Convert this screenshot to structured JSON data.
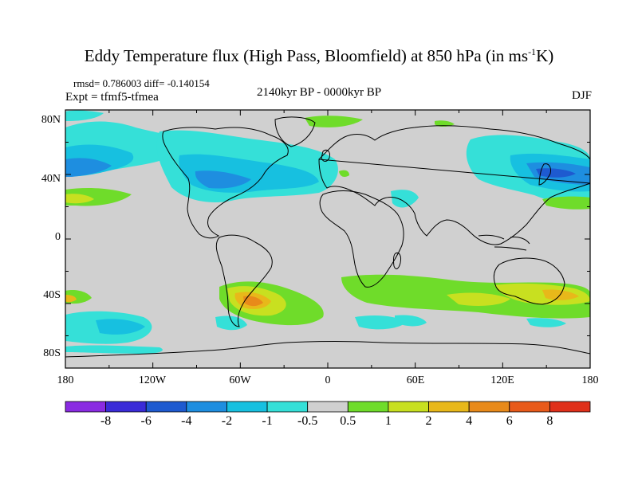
{
  "title_main": "Eddy Temperature flux (High Pass, Bloomfield) at 850 hPa (in ms",
  "title_sup": "-1",
  "title_tail": "K)",
  "stats": "rmsd= 0.786003 diff= -0.140154",
  "expt": "Expt = tfmf5-tfmea",
  "period": "2140kyr BP - 0000kyr BP",
  "season": "DJF",
  "lat_labels": [
    "80N",
    "40N",
    "0",
    "40S",
    "80S"
  ],
  "lon_labels": [
    "180",
    "120W",
    "60W",
    "0",
    "60E",
    "120E",
    "180"
  ],
  "colorbar": {
    "labels": [
      "-8",
      "-6",
      "-4",
      "-2",
      "-1",
      "-0.5",
      "0.5",
      "1",
      "2",
      "4",
      "6",
      "8"
    ],
    "colors": [
      "#8a2be2",
      "#3a2bd8",
      "#1e5ad0",
      "#1e8ee0",
      "#17c0e0",
      "#35e0d8",
      "#d0d0d0",
      "#6fdc2a",
      "#c8e020",
      "#e8b81a",
      "#e88a1a",
      "#e85a1a",
      "#e0301a"
    ]
  },
  "map_colors": {
    "background": "#d0d0d0",
    "neg_weak": "#35e0d8",
    "neg_mid": "#17c0e0",
    "neg_strong": "#1e8ee0",
    "neg_max": "#1e5ad0",
    "pos_weak": "#6fdc2a",
    "pos_mid": "#c8e020",
    "pos_strong": "#e8b81a",
    "pos_max": "#e88a1a"
  }
}
